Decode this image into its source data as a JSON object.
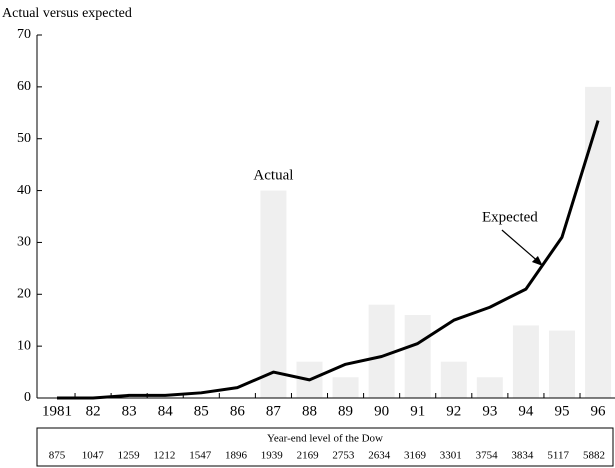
{
  "chart_data": {
    "type": "combo",
    "title": "Actual versus expected",
    "categories": [
      "1981",
      "82",
      "83",
      "84",
      "85",
      "86",
      "87",
      "88",
      "89",
      "90",
      "91",
      "92",
      "93",
      "94",
      "95",
      "96"
    ],
    "series": [
      {
        "name": "Actual",
        "type": "bar",
        "color": "#efefef",
        "values": [
          0,
          0,
          0,
          0,
          0,
          0,
          40,
          7,
          4,
          18,
          16,
          7,
          4,
          14,
          13,
          60
        ]
      },
      {
        "name": "Expected",
        "type": "line",
        "color": "#000000",
        "values": [
          0,
          0,
          0.5,
          0.5,
          1,
          2,
          5,
          3.5,
          6.5,
          8,
          10.5,
          15,
          17.5,
          21,
          31,
          53.5
        ]
      }
    ],
    "ylim": [
      0,
      70
    ],
    "yticks": [
      0,
      10,
      20,
      30,
      40,
      50,
      60,
      70
    ]
  },
  "dow_table": {
    "title": "Year-end level of the Dow",
    "values": [
      875,
      1047,
      1259,
      1212,
      1547,
      1896,
      1939,
      2169,
      2753,
      2634,
      3169,
      3301,
      3754,
      3834,
      5117,
      5882
    ]
  }
}
